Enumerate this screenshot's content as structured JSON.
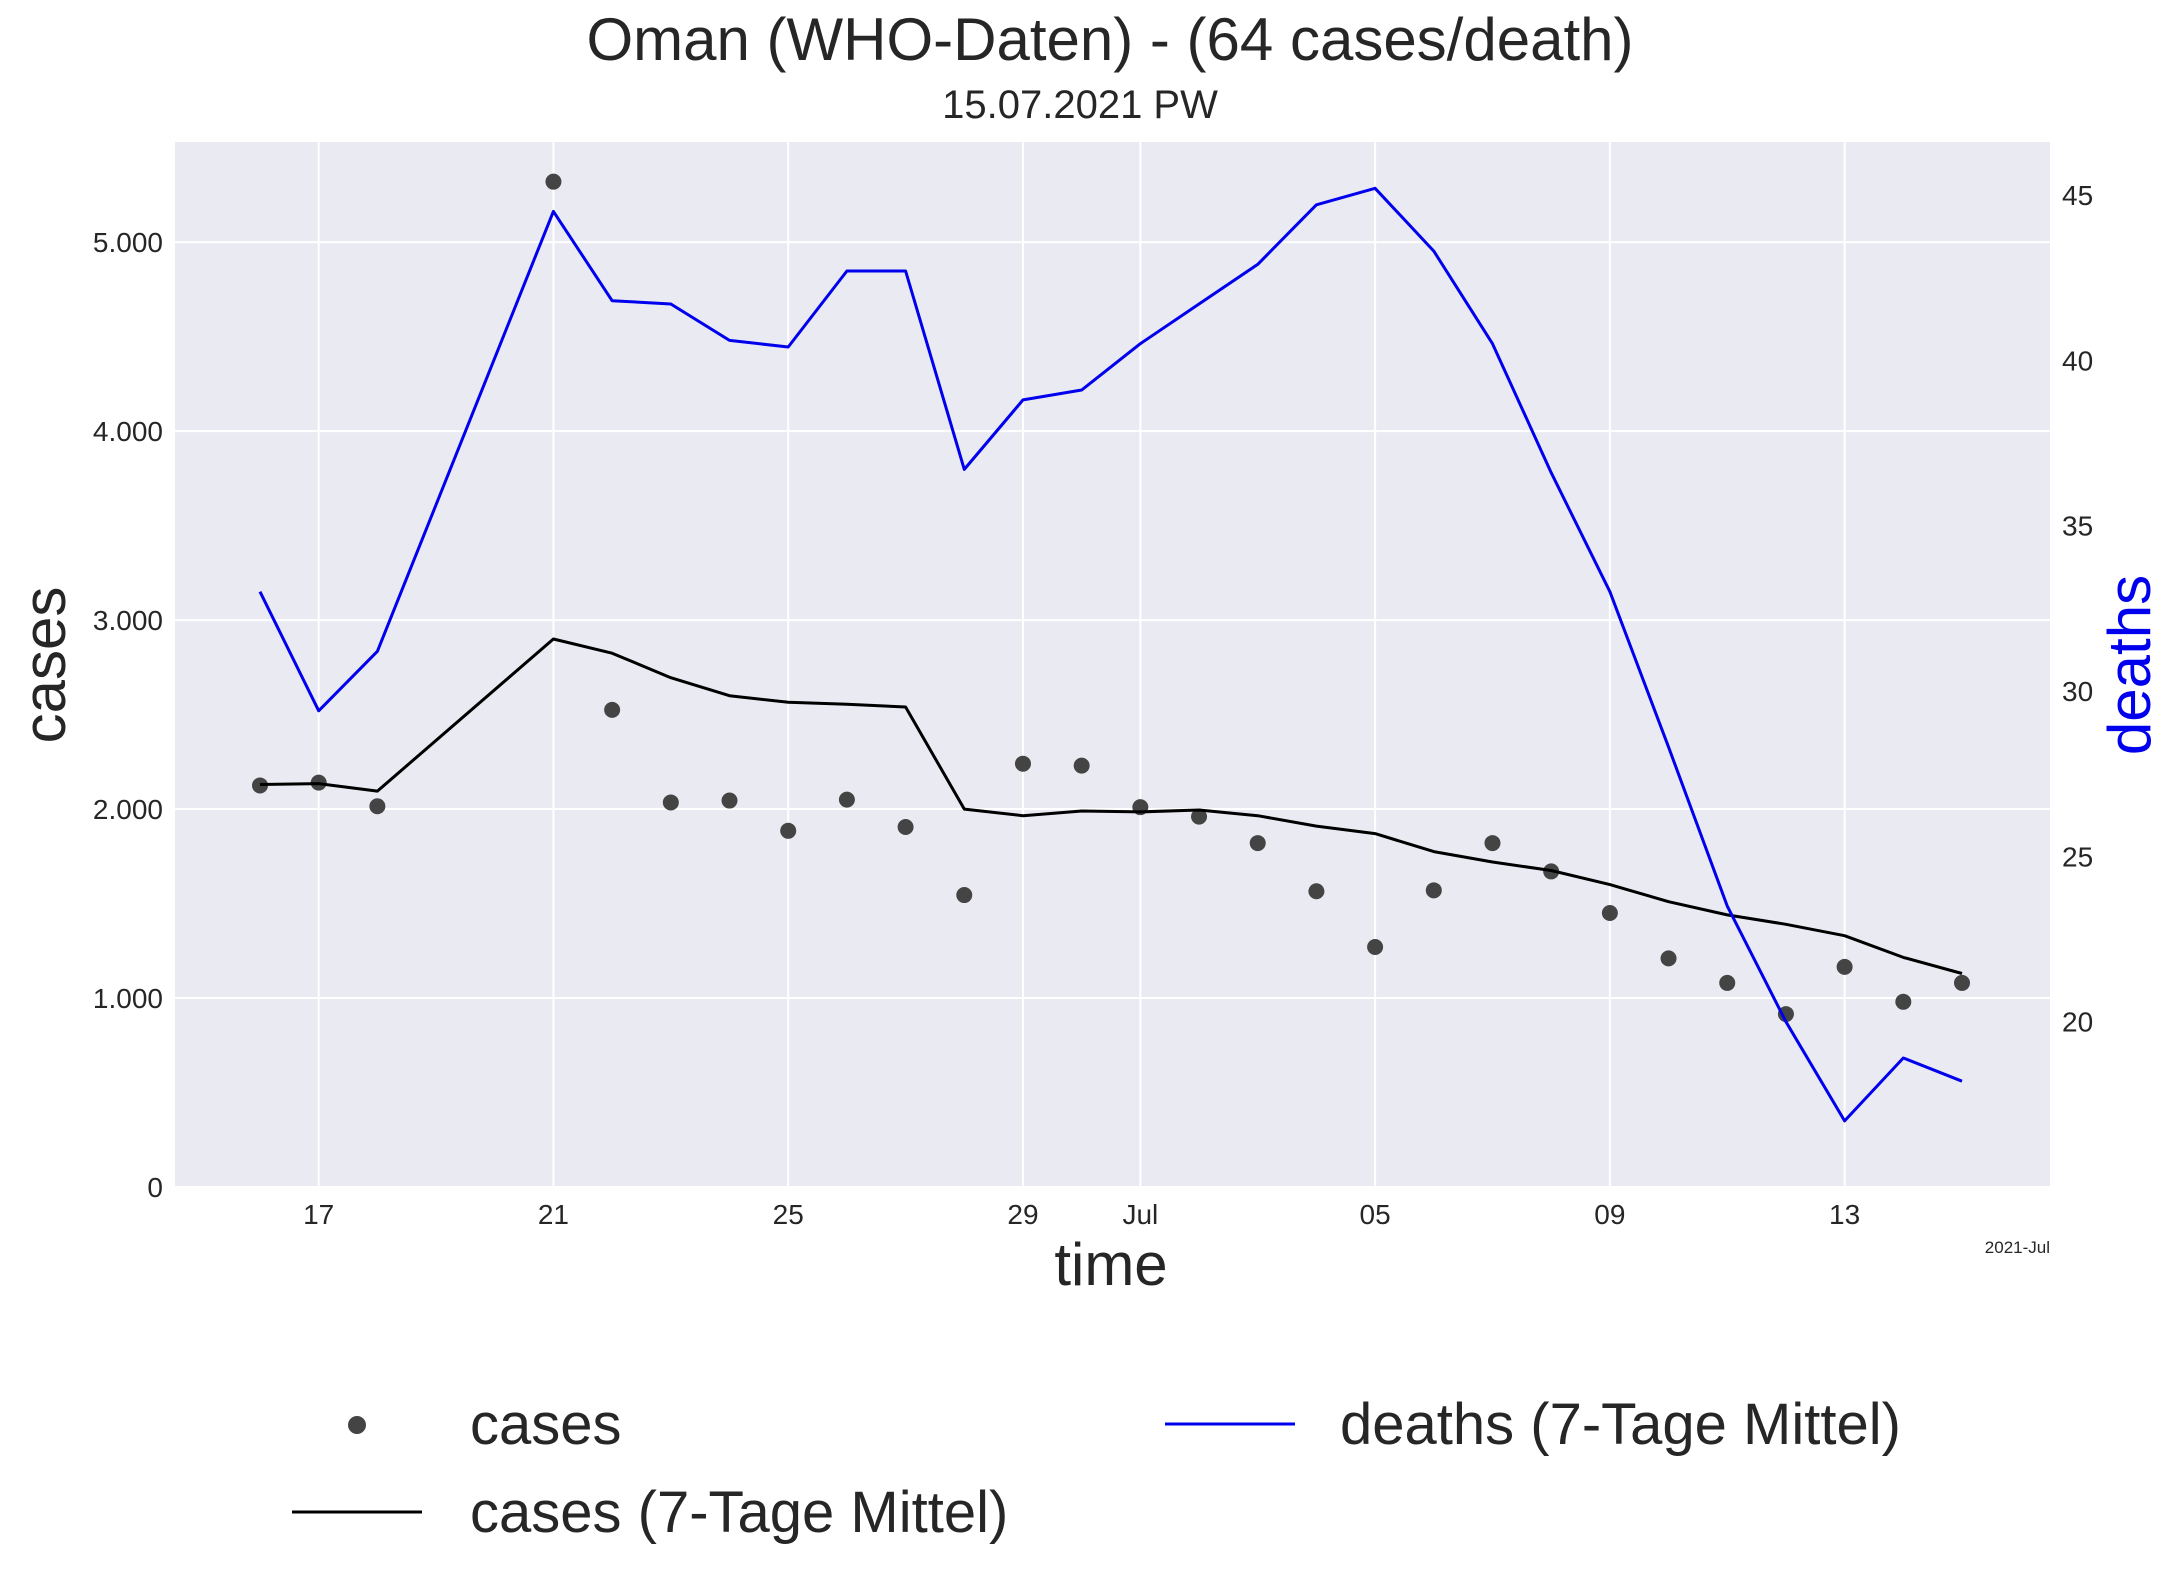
{
  "title": "Oman (WHO-Daten) - (64 cases/death)",
  "subtitle": "15.07.2021 PW",
  "chart_data": {
    "type": "line",
    "x_dates": [
      "2021-06-16",
      "2021-06-17",
      "2021-06-18",
      "2021-06-19",
      "2021-06-20",
      "2021-06-21",
      "2021-06-22",
      "2021-06-23",
      "2021-06-24",
      "2021-06-25",
      "2021-06-26",
      "2021-06-27",
      "2021-06-28",
      "2021-06-29",
      "2021-06-30",
      "2021-07-01",
      "2021-07-02",
      "2021-07-03",
      "2021-07-04",
      "2021-07-05",
      "2021-07-06",
      "2021-07-07",
      "2021-07-08",
      "2021-07-09",
      "2021-07-10",
      "2021-07-11",
      "2021-07-12",
      "2021-07-13",
      "2021-07-14",
      "2021-07-15"
    ],
    "xlabel": "time",
    "ylabel_left": "cases",
    "ylabel_right": "deaths",
    "x_tick_labels": [
      "17",
      "21",
      "25",
      "29",
      "Jul",
      "05",
      "09",
      "13"
    ],
    "x_tick_dates": [
      "2021-06-17",
      "2021-06-21",
      "2021-06-25",
      "2021-06-29",
      "2021-07-01",
      "2021-07-05",
      "2021-07-09",
      "2021-07-13"
    ],
    "x_offset_label": "2021-Jul",
    "ylim_left": [
      0,
      5530
    ],
    "y_ticks_left": [
      0,
      1000,
      2000,
      3000,
      4000,
      5000
    ],
    "y_tick_labels_left": [
      "0",
      "1.000",
      "2.000",
      "3.000",
      "4.000",
      "5.000"
    ],
    "ylim_right": [
      15.0,
      46.6
    ],
    "y_ticks_right": [
      20,
      25,
      30,
      35,
      40,
      45
    ],
    "y_tick_labels_right": [
      "20",
      "25",
      "30",
      "35",
      "40",
      "45"
    ],
    "grid": true,
    "legend_position": "bottom",
    "series": [
      {
        "name": "cases",
        "kind": "scatter",
        "axis": "left",
        "color": "#444444",
        "values": [
          2125,
          2140,
          2015,
          null,
          null,
          5320,
          2525,
          2035,
          2045,
          1885,
          2050,
          1905,
          1545,
          2240,
          2230,
          2010,
          1960,
          1820,
          1565,
          1270,
          1570,
          1820,
          1670,
          1450,
          1210,
          1080,
          915,
          1165,
          980,
          1080
        ]
      },
      {
        "name": "cases (7-Tage Mittel)",
        "kind": "line",
        "axis": "left",
        "color": "#000000",
        "values": [
          2130,
          2135,
          2095,
          null,
          null,
          2900,
          2825,
          2695,
          2600,
          2565,
          2555,
          2540,
          2000,
          1965,
          1990,
          1985,
          1995,
          1965,
          1910,
          1870,
          1775,
          1720,
          1675,
          1600,
          1510,
          1440,
          1390,
          1330,
          1215,
          1130
        ]
      },
      {
        "name": "deaths (7-Tage Mittel)",
        "kind": "line",
        "axis": "right",
        "color": "#0000ee",
        "values": [
          33.0,
          29.4,
          31.2,
          null,
          null,
          44.5,
          41.8,
          41.7,
          40.6,
          40.4,
          42.7,
          42.7,
          36.7,
          38.8,
          39.1,
          40.5,
          41.7,
          42.9,
          44.7,
          45.2,
          43.3,
          40.5,
          36.6,
          33.0,
          28.3,
          23.5,
          20.0,
          17.0,
          18.9,
          18.2
        ]
      }
    ]
  }
}
